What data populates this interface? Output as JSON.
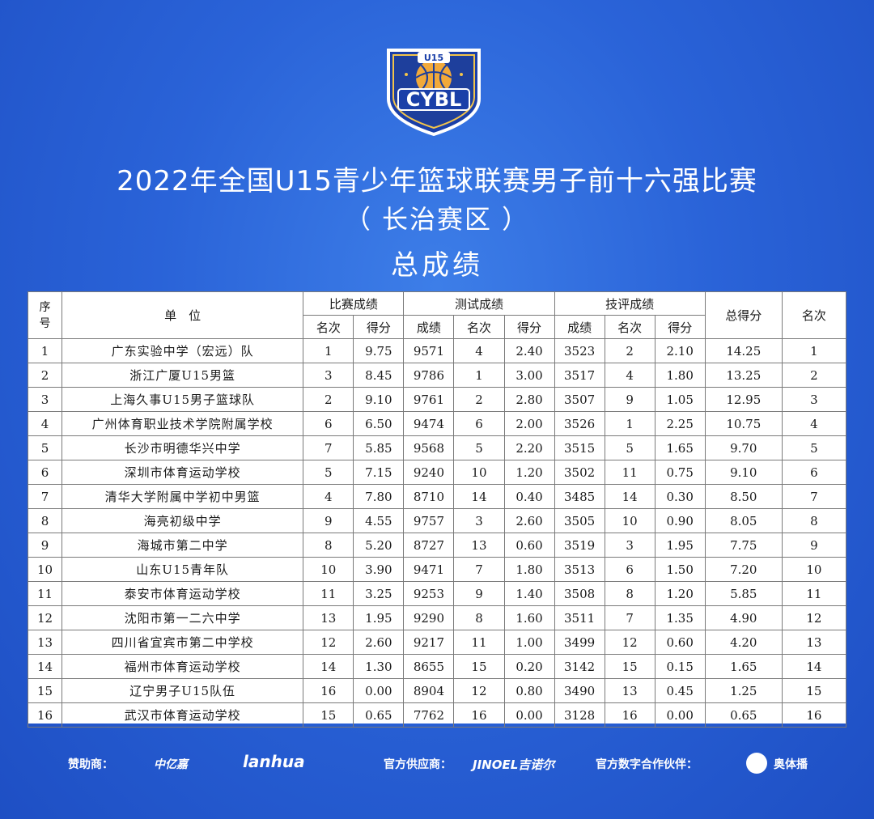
{
  "header": {
    "logo_top": "U15",
    "logo_main": "CYBL",
    "title_line1": "2022年全国U15青少年篮球联赛男子前十六强比赛",
    "title_line2": "（ 长治赛区 ）",
    "title_line3": "总成绩"
  },
  "table": {
    "col_seq": "序号",
    "col_unit": "单　位",
    "grp_match": "比赛成绩",
    "grp_test": "测试成绩",
    "grp_tech": "技评成绩",
    "col_total": "总得分",
    "col_rank": "名次",
    "sub_rank": "名次",
    "sub_score": "得分",
    "sub_result": "成绩",
    "rows": [
      {
        "seq": "1",
        "name": "广东实验中学（宏远）队",
        "m_rank": "1",
        "m_score": "9.75",
        "t_result": "9571",
        "t_rank": "4",
        "t_score": "2.40",
        "j_result": "3523",
        "j_rank": "2",
        "j_score": "2.10",
        "total": "14.25",
        "rank": "1"
      },
      {
        "seq": "2",
        "name": "浙江广厦U15男篮",
        "m_rank": "3",
        "m_score": "8.45",
        "t_result": "9786",
        "t_rank": "1",
        "t_score": "3.00",
        "j_result": "3517",
        "j_rank": "4",
        "j_score": "1.80",
        "total": "13.25",
        "rank": "2"
      },
      {
        "seq": "3",
        "name": "上海久事U15男子篮球队",
        "m_rank": "2",
        "m_score": "9.10",
        "t_result": "9761",
        "t_rank": "2",
        "t_score": "2.80",
        "j_result": "3507",
        "j_rank": "9",
        "j_score": "1.05",
        "total": "12.95",
        "rank": "3"
      },
      {
        "seq": "4",
        "name": "广州体育职业技术学院附属学校",
        "m_rank": "6",
        "m_score": "6.50",
        "t_result": "9474",
        "t_rank": "6",
        "t_score": "2.00",
        "j_result": "3526",
        "j_rank": "1",
        "j_score": "2.25",
        "total": "10.75",
        "rank": "4"
      },
      {
        "seq": "5",
        "name": "长沙市明德华兴中学",
        "m_rank": "7",
        "m_score": "5.85",
        "t_result": "9568",
        "t_rank": "5",
        "t_score": "2.20",
        "j_result": "3515",
        "j_rank": "5",
        "j_score": "1.65",
        "total": "9.70",
        "rank": "5"
      },
      {
        "seq": "6",
        "name": "深圳市体育运动学校",
        "m_rank": "5",
        "m_score": "7.15",
        "t_result": "9240",
        "t_rank": "10",
        "t_score": "1.20",
        "j_result": "3502",
        "j_rank": "11",
        "j_score": "0.75",
        "total": "9.10",
        "rank": "6"
      },
      {
        "seq": "7",
        "name": "清华大学附属中学初中男篮",
        "m_rank": "4",
        "m_score": "7.80",
        "t_result": "8710",
        "t_rank": "14",
        "t_score": "0.40",
        "j_result": "3485",
        "j_rank": "14",
        "j_score": "0.30",
        "total": "8.50",
        "rank": "7"
      },
      {
        "seq": "8",
        "name": "海亮初级中学",
        "m_rank": "9",
        "m_score": "4.55",
        "t_result": "9757",
        "t_rank": "3",
        "t_score": "2.60",
        "j_result": "3505",
        "j_rank": "10",
        "j_score": "0.90",
        "total": "8.05",
        "rank": "8"
      },
      {
        "seq": "9",
        "name": "海城市第二中学",
        "m_rank": "8",
        "m_score": "5.20",
        "t_result": "8727",
        "t_rank": "13",
        "t_score": "0.60",
        "j_result": "3519",
        "j_rank": "3",
        "j_score": "1.95",
        "total": "7.75",
        "rank": "9"
      },
      {
        "seq": "10",
        "name": "山东U15青年队",
        "m_rank": "10",
        "m_score": "3.90",
        "t_result": "9471",
        "t_rank": "7",
        "t_score": "1.80",
        "j_result": "3513",
        "j_rank": "6",
        "j_score": "1.50",
        "total": "7.20",
        "rank": "10"
      },
      {
        "seq": "11",
        "name": "泰安市体育运动学校",
        "m_rank": "11",
        "m_score": "3.25",
        "t_result": "9253",
        "t_rank": "9",
        "t_score": "1.40",
        "j_result": "3508",
        "j_rank": "8",
        "j_score": "1.20",
        "total": "5.85",
        "rank": "11"
      },
      {
        "seq": "12",
        "name": "沈阳市第一二六中学",
        "m_rank": "13",
        "m_score": "1.95",
        "t_result": "9290",
        "t_rank": "8",
        "t_score": "1.60",
        "j_result": "3511",
        "j_rank": "7",
        "j_score": "1.35",
        "total": "4.90",
        "rank": "12"
      },
      {
        "seq": "13",
        "name": "四川省宜宾市第二中学校",
        "m_rank": "12",
        "m_score": "2.60",
        "t_result": "9217",
        "t_rank": "11",
        "t_score": "1.00",
        "j_result": "3499",
        "j_rank": "12",
        "j_score": "0.60",
        "total": "4.20",
        "rank": "13"
      },
      {
        "seq": "14",
        "name": "福州市体育运动学校",
        "m_rank": "14",
        "m_score": "1.30",
        "t_result": "8655",
        "t_rank": "15",
        "t_score": "0.20",
        "j_result": "3142",
        "j_rank": "15",
        "j_score": "0.15",
        "total": "1.65",
        "rank": "14"
      },
      {
        "seq": "15",
        "name": "辽宁男子U15队伍",
        "m_rank": "16",
        "m_score": "0.00",
        "t_result": "8904",
        "t_rank": "12",
        "t_score": "0.80",
        "j_result": "3490",
        "j_rank": "13",
        "j_score": "0.45",
        "total": "1.25",
        "rank": "15"
      },
      {
        "seq": "16",
        "name": "武汉市体育运动学校",
        "m_rank": "15",
        "m_score": "0.65",
        "t_result": "7762",
        "t_rank": "16",
        "t_score": "0.00",
        "j_result": "3128",
        "j_rank": "16",
        "j_score": "0.00",
        "total": "0.65",
        "rank": "16"
      }
    ]
  },
  "footer": {
    "sponsor_label": "赞助商：",
    "sponsor_logo1": "中亿嘉",
    "sponsor_logo2": "lanhua",
    "supplier_label": "官方供应商：",
    "supplier_logo": "JINOEL吉诺尔",
    "digital_label": "官方数字合作伙伴：",
    "digital_logo": "奥体播"
  }
}
